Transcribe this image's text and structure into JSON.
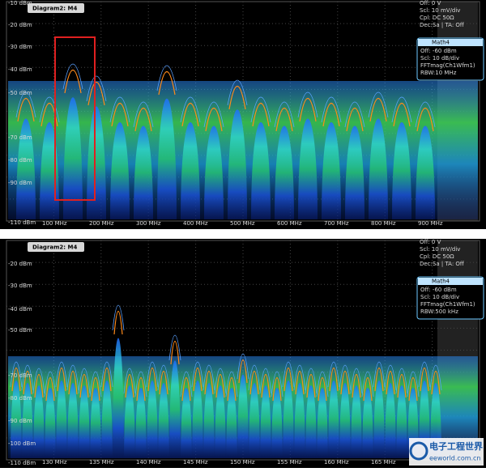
{
  "panels": [
    {
      "diagram": "Diagram2: M4",
      "y_labels": [
        "-10 dBm",
        "-20 dBm",
        "-30 dBm",
        "-40 dBm",
        "-50 dBm",
        "-70 dBm",
        "-80 dBm",
        "-90 dBm",
        "-110 dBm"
      ],
      "x_labels": [
        "100 MHz",
        "200 MHz",
        "300 MHz",
        "400 MHz",
        "500 MHz",
        "600 MHz",
        "700 MHz",
        "800 MHz",
        "900 MHz"
      ],
      "channel_info": [
        "Off: 0 V",
        "Scl: 10 mV/div",
        "Cpl: DC 50Ω",
        "Dec:Sa | TA: Off"
      ],
      "math": {
        "title": "Math4",
        "lines": [
          "Off: -60 dBm",
          "Scl: 10 dB/div",
          "FFTmag(Ch1Wfm1)",
          "RBW:10 MHz"
        ]
      }
    },
    {
      "diagram": "Diagram2: M4",
      "y_labels": [
        "-20 dBm",
        "-30 dBm",
        "-40 dBm",
        "-50 dBm",
        "-70 dBm",
        "-80 dBm",
        "-90 dBm",
        "-100 dBm",
        "-110 dBm"
      ],
      "x_labels": [
        "130 MHz",
        "135 MHz",
        "140 MHz",
        "145 MHz",
        "150 MHz",
        "155 MHz",
        "160 MHz",
        "165 MHz"
      ],
      "channel_info": [
        "Off: 0 V",
        "Scl: 10 mV/div",
        "Cpl: DC 50Ω",
        "Dec:Sa | TA: Off"
      ],
      "math": {
        "title": "Math4",
        "lines": [
          "Off: -60 dBm",
          "Scl: 10 dB/div",
          "FFTmag(Ch1Wfm1)",
          "RBW:500 kHz"
        ]
      }
    }
  ],
  "watermark": {
    "title": "电子工程世界",
    "url": "eeworld.com.cn"
  }
}
